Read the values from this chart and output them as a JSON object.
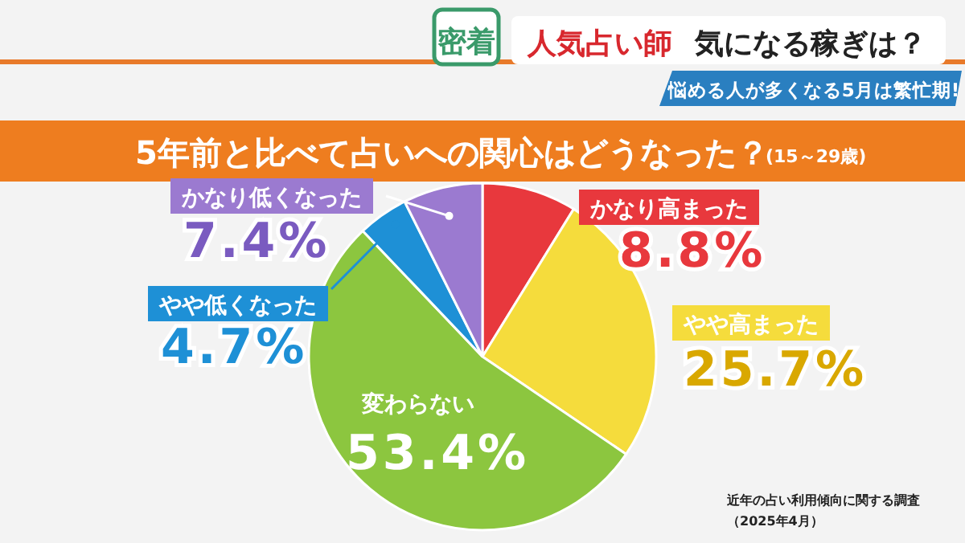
{
  "chart_data": {
    "type": "pie",
    "title": "5年前と比べて占いへの関心はどうなった？",
    "subtitle": "(15～29歳)",
    "categories": [
      "かなり高まった",
      "やや高まった",
      "変わらない",
      "やや低くなった",
      "かなり低くなった"
    ],
    "values": [
      8.8,
      25.7,
      53.4,
      4.7,
      7.4
    ],
    "value_labels": [
      "8.8%",
      "25.7%",
      "53.4%",
      "4.7%",
      "7.4%"
    ],
    "colors": [
      "#e8383d",
      "#f5dc3c",
      "#8cc63f",
      "#1e90d6",
      "#9b7ad0"
    ],
    "annotations": [
      "密着",
      "人気占い師",
      "気になる稼ぎは？",
      "悩める人が多くなる5月は繁忙期!",
      "近年の占い利用傾向に関する調査",
      "（2025年4月）"
    ]
  }
}
